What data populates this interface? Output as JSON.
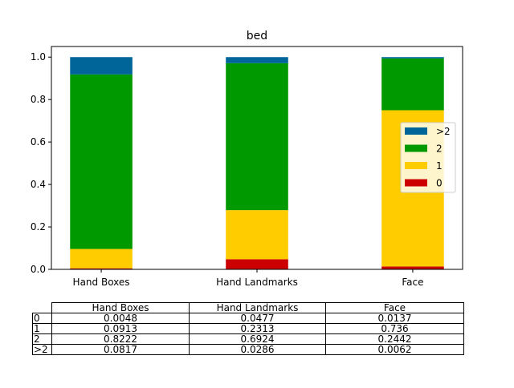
{
  "chart_data": {
    "type": "bar",
    "stacked": true,
    "title": "bed",
    "xlabel": "",
    "ylabel": "",
    "ylim": [
      0,
      1.05
    ],
    "yticks": [
      "0.0",
      "0.2",
      "0.4",
      "0.6",
      "0.8",
      "1.0"
    ],
    "categories": [
      "Hand Boxes",
      "Hand Landmarks",
      "Face"
    ],
    "series": [
      {
        "name": "0",
        "color": "#cc0000",
        "values": [
          0.0048,
          0.0477,
          0.0137
        ]
      },
      {
        "name": "1",
        "color": "#ffcc00",
        "values": [
          0.0913,
          0.2313,
          0.736
        ]
      },
      {
        "name": "2",
        "color": "#009900",
        "values": [
          0.8222,
          0.6924,
          0.2442
        ]
      },
      {
        "name": ">2",
        "color": "#006699",
        "values": [
          0.0817,
          0.0286,
          0.0062
        ]
      }
    ],
    "legend_position": "center-right",
    "legend_order": [
      ">2",
      "2",
      "1",
      "0"
    ],
    "grid": false
  },
  "table": {
    "columns": [
      "Hand Boxes",
      "Hand Landmarks",
      "Face"
    ],
    "rows": [
      {
        "label": "0",
        "cells": [
          "0.0048",
          "0.0477",
          "0.0137"
        ]
      },
      {
        "label": "1",
        "cells": [
          "0.0913",
          "0.2313",
          "0.736"
        ]
      },
      {
        "label": "2",
        "cells": [
          "0.8222",
          "0.6924",
          "0.2442"
        ]
      },
      {
        "label": ">2",
        "cells": [
          "0.0817",
          "0.0286",
          "0.0062"
        ]
      }
    ]
  }
}
